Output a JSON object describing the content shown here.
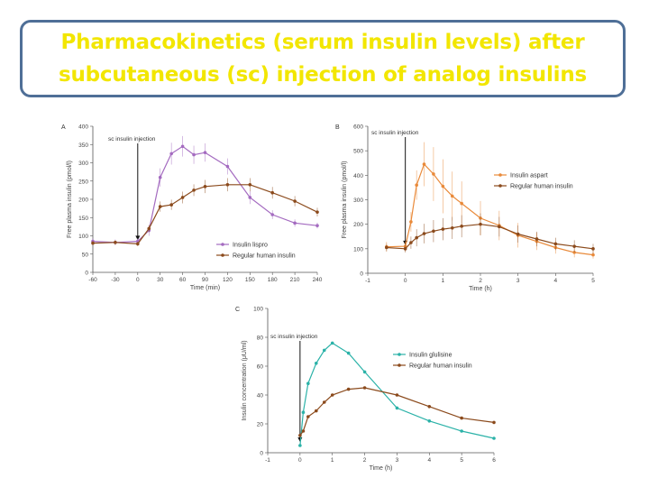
{
  "slide": {
    "title_line1": "Pharmacokinetics (serum insulin levels) after",
    "title_line2": "subcutaneous (sc) injection of analog insulins"
  },
  "colors": {
    "title": "#f2e600",
    "title_border": "#4f6f97",
    "lispro": "#a46bc0",
    "aspart": "#e98a3a",
    "glulisine": "#2bb2a8",
    "regular": "#8b4a1c"
  },
  "chart_data": [
    {
      "type": "line",
      "panel": "A",
      "annotation": "sc insulin injection",
      "injection_x": 0,
      "xlabel": "Time (min)",
      "ylabel": "Free plasma insulin (pmol/l)",
      "xlim": [
        -60,
        240
      ],
      "ylim": [
        0,
        400
      ],
      "xticks": [
        -60,
        -30,
        0,
        30,
        60,
        90,
        120,
        150,
        180,
        210,
        240
      ],
      "yticks": [
        0,
        50,
        100,
        150,
        200,
        250,
        300,
        350,
        400
      ],
      "legend_position": "bottom-right",
      "series": [
        {
          "name": "Insulin lispro",
          "color_key": "lispro",
          "x": [
            -60,
            -30,
            0,
            15,
            30,
            45,
            60,
            75,
            90,
            120,
            150,
            180,
            210,
            240
          ],
          "y": [
            85,
            82,
            85,
            115,
            260,
            325,
            345,
            322,
            328,
            290,
            205,
            158,
            135,
            128
          ],
          "err": [
            8,
            8,
            8,
            15,
            25,
            30,
            28,
            25,
            25,
            22,
            18,
            12,
            10,
            8
          ]
        },
        {
          "name": "Regular human insulin",
          "color_key": "regular",
          "x": [
            -60,
            -30,
            0,
            15,
            30,
            45,
            60,
            75,
            90,
            120,
            150,
            180,
            210,
            240
          ],
          "y": [
            80,
            82,
            78,
            120,
            180,
            185,
            205,
            225,
            235,
            240,
            240,
            218,
            195,
            165
          ],
          "err": [
            6,
            6,
            6,
            10,
            14,
            14,
            16,
            16,
            18,
            18,
            18,
            16,
            14,
            12
          ]
        }
      ]
    },
    {
      "type": "line",
      "panel": "B",
      "annotation": "sc insulin injection",
      "injection_x": 0,
      "xlabel": "Time (h)",
      "ylabel": "Free plasma insulin (pmol/l)",
      "xlim": [
        -1,
        5
      ],
      "ylim": [
        0,
        600
      ],
      "xticks": [
        -1,
        0,
        1,
        2,
        3,
        4,
        5
      ],
      "yticks": [
        0,
        100,
        200,
        300,
        400,
        500,
        600
      ],
      "legend_position": "right",
      "series": [
        {
          "name": "Insulin aspart",
          "color_key": "aspart",
          "x": [
            -0.5,
            0,
            0.15,
            0.3,
            0.5,
            0.75,
            1,
            1.25,
            1.5,
            2,
            2.5,
            3,
            3.5,
            4,
            4.5,
            5
          ],
          "y": [
            108,
            110,
            210,
            360,
            445,
            405,
            355,
            315,
            285,
            225,
            195,
            155,
            130,
            105,
            85,
            75
          ],
          "err": [
            20,
            20,
            40,
            60,
            90,
            110,
            110,
            100,
            90,
            70,
            60,
            50,
            35,
            25,
            20,
            15
          ]
        },
        {
          "name": "Regular human insulin",
          "color_key": "regular",
          "x": [
            -0.5,
            0,
            0.15,
            0.3,
            0.5,
            0.75,
            1,
            1.25,
            1.5,
            2,
            2.5,
            3,
            3.5,
            4,
            4.5,
            5
          ],
          "y": [
            105,
            100,
            125,
            145,
            162,
            172,
            180,
            185,
            192,
            200,
            190,
            160,
            140,
            120,
            110,
            100
          ],
          "err": [
            15,
            15,
            25,
            35,
            40,
            45,
            45,
            45,
            45,
            45,
            40,
            35,
            30,
            25,
            25,
            20
          ]
        }
      ]
    },
    {
      "type": "line",
      "panel": "C",
      "annotation": "sc insulin injection",
      "injection_x": 0,
      "xlabel": "Time (h)",
      "ylabel": "Insulin concentration (μU/ml)",
      "xlim": [
        -1,
        6
      ],
      "ylim": [
        0,
        100
      ],
      "xticks": [
        -1,
        0,
        1,
        2,
        3,
        4,
        5,
        6
      ],
      "yticks": [
        0,
        20,
        40,
        60,
        80,
        100
      ],
      "legend_position": "right",
      "series": [
        {
          "name": "Insulin glulisine",
          "color_key": "glulisine",
          "x": [
            0,
            0.1,
            0.25,
            0.5,
            0.75,
            1,
            1.5,
            2,
            3,
            4,
            5,
            6
          ],
          "y": [
            5,
            28,
            48,
            62,
            71,
            76,
            69,
            56,
            31,
            22,
            15,
            10
          ]
        },
        {
          "name": "Regular human insulin",
          "color_key": "regular",
          "x": [
            0,
            0.1,
            0.25,
            0.5,
            0.75,
            1,
            1.5,
            2,
            3,
            4,
            5,
            6
          ],
          "y": [
            12,
            15,
            25,
            29,
            35,
            40,
            44,
            45,
            40,
            32,
            24,
            21
          ]
        }
      ]
    }
  ]
}
